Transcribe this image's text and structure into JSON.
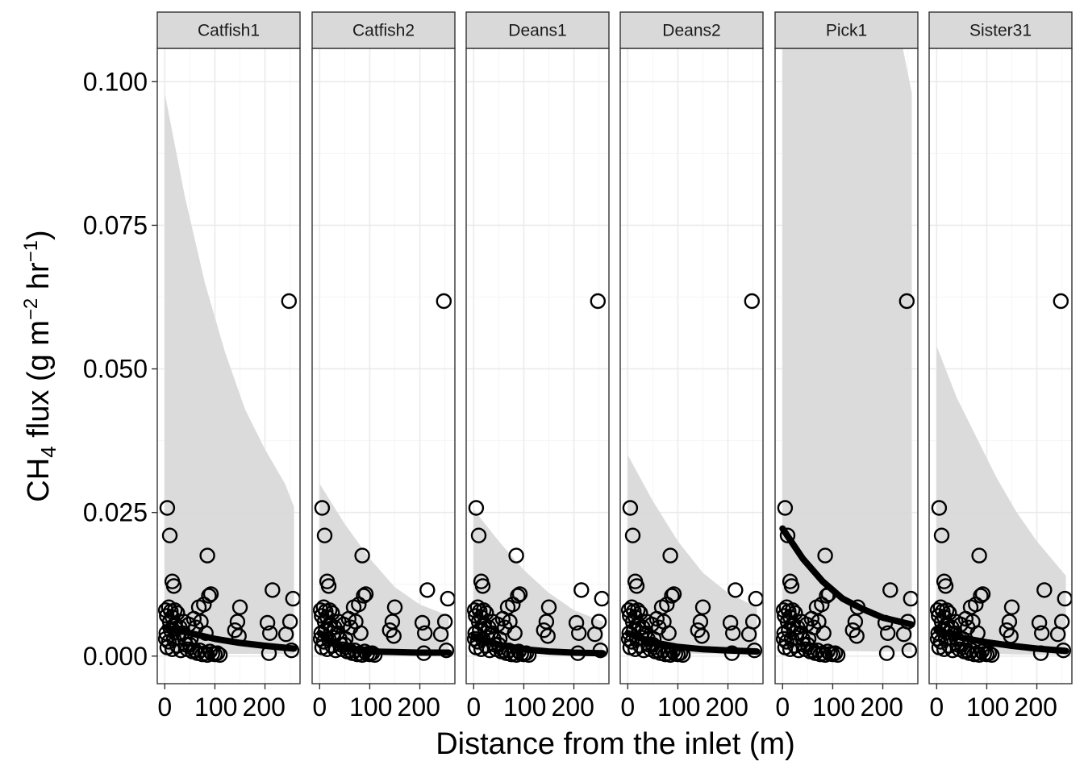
{
  "chart_data": {
    "type": "scatter",
    "facet_by": "site",
    "facets": [
      "Catfish1",
      "Catfish2",
      "Deans1",
      "Deans2",
      "Pick1",
      "Sister31"
    ],
    "xlabel": "Distance from the inlet (m)",
    "ylabel": {
      "prefix": "CH",
      "sub": "4",
      "mid": " flux (g m",
      "sup1": "−2",
      "mid2": " hr",
      "sup2": "−1",
      "suffix": ")"
    },
    "xlim": [
      -15,
      270
    ],
    "ylim": [
      -0.0048,
      0.1058
    ],
    "x_ticks": [
      0,
      100,
      200
    ],
    "x_tick_labels": [
      "0",
      "100",
      "200"
    ],
    "y_ticks": [
      0.0,
      0.025,
      0.05,
      0.075,
      0.1
    ],
    "y_tick_labels": [
      "0.000",
      "0.025",
      "0.050",
      "0.075",
      "0.100"
    ],
    "grid": true,
    "points": [
      [
        5,
        0.0258
      ],
      [
        10,
        0.021
      ],
      [
        15,
        0.013
      ],
      [
        18,
        0.0122
      ],
      [
        2,
        0.008
      ],
      [
        8,
        0.0085
      ],
      [
        12,
        0.0078
      ],
      [
        20,
        0.008
      ],
      [
        4,
        0.007
      ],
      [
        15,
        0.0068
      ],
      [
        25,
        0.0075
      ],
      [
        10,
        0.006
      ],
      [
        20,
        0.0055
      ],
      [
        3,
        0.004
      ],
      [
        12,
        0.0045
      ],
      [
        22,
        0.0048
      ],
      [
        30,
        0.005
      ],
      [
        35,
        0.004
      ],
      [
        2,
        0.003
      ],
      [
        8,
        0.0025
      ],
      [
        18,
        0.003
      ],
      [
        28,
        0.0032
      ],
      [
        40,
        0.003
      ],
      [
        5,
        0.0015
      ],
      [
        15,
        0.0012
      ],
      [
        25,
        0.0018
      ],
      [
        32,
        0.001
      ],
      [
        45,
        0.0012
      ],
      [
        50,
        0.002
      ],
      [
        55,
        0.0008
      ],
      [
        60,
        0.001
      ],
      [
        65,
        0.0005
      ],
      [
        70,
        0.001
      ],
      [
        75,
        0.0003
      ],
      [
        80,
        0.0005
      ],
      [
        85,
        0.0002
      ],
      [
        90,
        0.0008
      ],
      [
        95,
        0.0004
      ],
      [
        100,
        0.0003
      ],
      [
        105,
        0.0005
      ],
      [
        110,
        0.0002
      ],
      [
        38,
        0.006
      ],
      [
        48,
        0.0055
      ],
      [
        58,
        0.0065
      ],
      [
        68,
        0.0085
      ],
      [
        78,
        0.009
      ],
      [
        88,
        0.0105
      ],
      [
        92,
        0.0108
      ],
      [
        85,
        0.0175
      ],
      [
        62,
        0.005
      ],
      [
        72,
        0.006
      ],
      [
        82,
        0.004
      ],
      [
        52,
        0.003
      ],
      [
        42,
        0.002
      ],
      [
        150,
        0.0085
      ],
      [
        145,
        0.006
      ],
      [
        140,
        0.0045
      ],
      [
        148,
        0.0035
      ],
      [
        205,
        0.0058
      ],
      [
        210,
        0.004
      ],
      [
        208,
        0.0005
      ],
      [
        215,
        0.0115
      ],
      [
        242,
        0.0038
      ],
      [
        250,
        0.006
      ],
      [
        253,
        0.001
      ],
      [
        256,
        0.01
      ],
      [
        248,
        0.0618
      ]
    ],
    "fits": {
      "Catfish1": [
        [
          0,
          0.005
        ],
        [
          50,
          0.004
        ],
        [
          100,
          0.003
        ],
        [
          150,
          0.0023
        ],
        [
          200,
          0.0018
        ],
        [
          258,
          0.0013
        ]
      ],
      "Catfish2": [
        [
          0,
          0.004
        ],
        [
          30,
          0.002
        ],
        [
          60,
          0.0012
        ],
        [
          100,
          0.0008
        ],
        [
          150,
          0.0007
        ],
        [
          200,
          0.0006
        ],
        [
          258,
          0.0006
        ]
      ],
      "Deans1": [
        [
          0,
          0.0035
        ],
        [
          50,
          0.002
        ],
        [
          100,
          0.0012
        ],
        [
          150,
          0.0008
        ],
        [
          200,
          0.0006
        ],
        [
          258,
          0.0005
        ]
      ],
      "Deans2": [
        [
          0,
          0.004
        ],
        [
          50,
          0.0024
        ],
        [
          100,
          0.0016
        ],
        [
          150,
          0.0012
        ],
        [
          200,
          0.001
        ],
        [
          258,
          0.0008
        ]
      ],
      "Pick1": [
        [
          0,
          0.0222
        ],
        [
          40,
          0.017
        ],
        [
          80,
          0.013
        ],
        [
          120,
          0.01
        ],
        [
          160,
          0.0082
        ],
        [
          200,
          0.0067
        ],
        [
          258,
          0.0055
        ]
      ],
      "Sister31": [
        [
          0,
          0.0045
        ],
        [
          50,
          0.0032
        ],
        [
          100,
          0.0024
        ],
        [
          150,
          0.0018
        ],
        [
          200,
          0.0013
        ],
        [
          258,
          0.0009
        ]
      ]
    },
    "bands": {
      "Catfish1": [
        [
          0,
          0.0004,
          0.098
        ],
        [
          40,
          0.0004,
          0.08
        ],
        [
          80,
          0.0004,
          0.065
        ],
        [
          120,
          0.0004,
          0.053
        ],
        [
          160,
          0.0004,
          0.043
        ],
        [
          200,
          0.0004,
          0.036
        ],
        [
          240,
          0.0004,
          0.03
        ],
        [
          258,
          0.0003,
          0.026
        ]
      ],
      "Catfish2": [
        [
          0,
          0.001,
          0.03
        ],
        [
          50,
          0.0006,
          0.023
        ],
        [
          100,
          0.0004,
          0.017
        ],
        [
          150,
          0.0003,
          0.012
        ],
        [
          200,
          0.0003,
          0.009
        ],
        [
          258,
          0.0002,
          0.007
        ]
      ],
      "Deans1": [
        [
          0,
          0.001,
          0.0255
        ],
        [
          50,
          0.0006,
          0.02
        ],
        [
          100,
          0.0004,
          0.015
        ],
        [
          150,
          0.0003,
          0.011
        ],
        [
          200,
          0.0002,
          0.008
        ],
        [
          258,
          0.0002,
          0.006
        ]
      ],
      "Deans2": [
        [
          0,
          0.001,
          0.035
        ],
        [
          50,
          0.0007,
          0.027
        ],
        [
          100,
          0.0005,
          0.02
        ],
        [
          150,
          0.0004,
          0.0145
        ],
        [
          200,
          0.0003,
          0.011
        ],
        [
          258,
          0.0003,
          0.0085
        ]
      ],
      "Pick1": [
        [
          0,
          0.001,
          0.1058
        ],
        [
          100,
          0.0009,
          0.1058
        ],
        [
          200,
          0.0008,
          0.1058
        ],
        [
          240,
          0.0008,
          0.1058
        ],
        [
          258,
          0.0007,
          0.098
        ]
      ],
      "Sister31": [
        [
          0,
          0.0005,
          0.054
        ],
        [
          40,
          0.0005,
          0.045
        ],
        [
          80,
          0.0004,
          0.038
        ],
        [
          120,
          0.0004,
          0.031
        ],
        [
          160,
          0.0003,
          0.025
        ],
        [
          200,
          0.0003,
          0.02
        ],
        [
          258,
          0.0002,
          0.014
        ]
      ]
    },
    "colors": {
      "point_stroke": "#000000",
      "fit_line": "#000000",
      "band_fill": "#d9d9d9",
      "strip_fill": "#d9d9d9",
      "grid_major": "#ebebeb",
      "grid_minor": "#f5f5f5",
      "panel_border": "#333333"
    }
  }
}
